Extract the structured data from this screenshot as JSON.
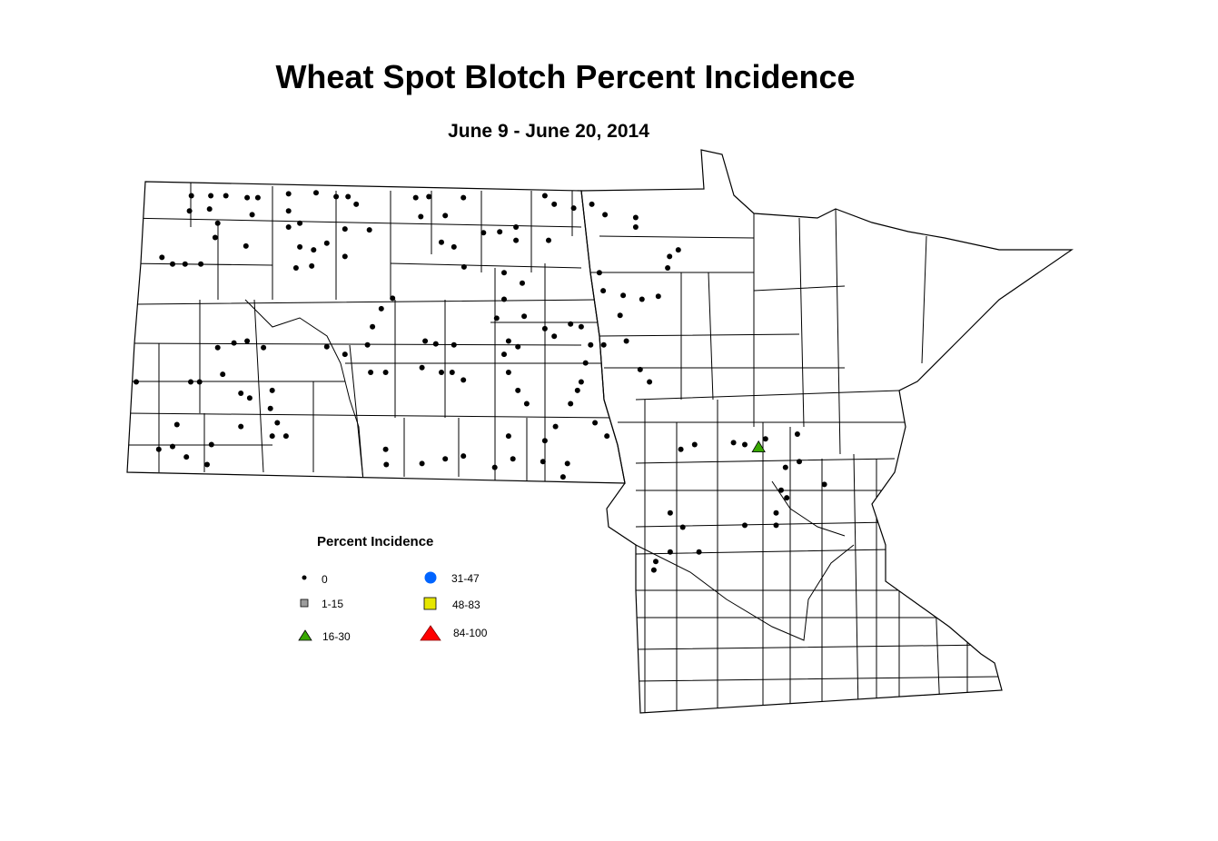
{
  "title": "Wheat Spot Blotch Percent Incidence",
  "subtitle": "June 9 - June 20, 2014",
  "legend": {
    "title": "Percent Incidence",
    "classes": [
      {
        "label": "0",
        "symbol": "small-dot",
        "color": "#000000"
      },
      {
        "label": "1-15",
        "symbol": "square",
        "color": "#9c9c9c"
      },
      {
        "label": "16-30",
        "symbol": "triangle",
        "color": "#38a800"
      },
      {
        "label": "31-47",
        "symbol": "circle",
        "color": "#0064ff"
      },
      {
        "label": "48-83",
        "symbol": "square",
        "color": "#e6e600"
      },
      {
        "label": "84-100",
        "symbol": "triangle",
        "color": "#ff0000"
      }
    ]
  },
  "map_data": {
    "region": [
      "North Dakota",
      "Minnesota"
    ],
    "boundaries": "county",
    "observations_0": [
      [
        -103.17,
        48.9
      ],
      [
        -103.2,
        48.74
      ],
      [
        -102.86,
        48.9
      ],
      [
        -102.88,
        48.76
      ],
      [
        -102.62,
        48.9
      ],
      [
        -102.28,
        48.88
      ],
      [
        -102.11,
        48.88
      ],
      [
        -102.2,
        48.7
      ],
      [
        -102.75,
        48.61
      ],
      [
        -102.3,
        48.37
      ],
      [
        -102.79,
        48.46
      ],
      [
        -103.64,
        48.25
      ],
      [
        -103.47,
        48.18
      ],
      [
        -103.27,
        48.18
      ],
      [
        -103.02,
        48.18
      ],
      [
        -101.62,
        48.92
      ],
      [
        -101.62,
        48.74
      ],
      [
        -101.62,
        48.57
      ],
      [
        -101.44,
        48.61
      ],
      [
        -101.44,
        48.36
      ],
      [
        -101.18,
        48.93
      ],
      [
        -100.86,
        48.89
      ],
      [
        -100.67,
        48.89
      ],
      [
        -100.54,
        48.81
      ],
      [
        -100.72,
        48.55
      ],
      [
        -101.01,
        48.4
      ],
      [
        -101.22,
        48.33
      ],
      [
        -101.5,
        48.14
      ],
      [
        -101.25,
        48.16
      ],
      [
        -100.72,
        48.26
      ],
      [
        -100.33,
        48.54
      ],
      [
        -99.59,
        48.88
      ],
      [
        -99.38,
        48.89
      ],
      [
        -98.83,
        48.88
      ],
      [
        -99.12,
        48.69
      ],
      [
        -99.51,
        48.68
      ],
      [
        -99.18,
        48.41
      ],
      [
        -98.98,
        48.36
      ],
      [
        -98.82,
        48.15
      ],
      [
        -98.51,
        48.51
      ],
      [
        -98.25,
        48.52
      ],
      [
        -97.99,
        48.57
      ],
      [
        -97.53,
        48.9
      ],
      [
        -97.38,
        48.81
      ],
      [
        -97.07,
        48.77
      ],
      [
        -96.78,
        48.81
      ],
      [
        -96.57,
        48.7
      ],
      [
        -96.08,
        48.67
      ],
      [
        -96.08,
        48.57
      ],
      [
        -96.66,
        48.09
      ],
      [
        -96.6,
        47.9
      ],
      [
        -96.28,
        47.85
      ],
      [
        -96.33,
        47.64
      ],
      [
        -95.98,
        47.81
      ],
      [
        -95.72,
        47.84
      ],
      [
        -95.54,
        48.26
      ],
      [
        -95.4,
        48.33
      ],
      [
        -95.57,
        48.14
      ],
      [
        -97.47,
        48.43
      ],
      [
        -97.99,
        48.43
      ],
      [
        -98.18,
        48.09
      ],
      [
        -97.89,
        47.98
      ],
      [
        -98.18,
        47.81
      ],
      [
        -98.3,
        47.61
      ],
      [
        -97.86,
        47.63
      ],
      [
        -97.53,
        47.5
      ],
      [
        -97.38,
        47.42
      ],
      [
        -97.12,
        47.55
      ],
      [
        -96.95,
        47.52
      ],
      [
        -96.8,
        47.33
      ],
      [
        -96.88,
        47.14
      ],
      [
        -96.95,
        46.94
      ],
      [
        -97.12,
        46.71
      ],
      [
        -97.01,
        46.85
      ],
      [
        -96.73,
        46.51
      ],
      [
        -96.54,
        46.37
      ],
      [
        -97.36,
        46.47
      ],
      [
        -97.53,
        46.32
      ],
      [
        -97.56,
        46.1
      ],
      [
        -97.17,
        46.08
      ],
      [
        -97.24,
        45.94
      ],
      [
        -98.11,
        46.37
      ],
      [
        -98.04,
        46.13
      ],
      [
        -98.33,
        46.04
      ],
      [
        -98.83,
        46.16
      ],
      [
        -99.12,
        46.13
      ],
      [
        -99.49,
        46.08
      ],
      [
        -100.07,
        46.23
      ],
      [
        -100.06,
        46.07
      ],
      [
        -100.28,
        47.52
      ],
      [
        -100.36,
        47.33
      ],
      [
        -100.14,
        47.71
      ],
      [
        -99.96,
        47.82
      ],
      [
        -99.44,
        47.37
      ],
      [
        -99.27,
        47.34
      ],
      [
        -98.98,
        47.33
      ],
      [
        -99.49,
        47.09
      ],
      [
        -99.18,
        47.04
      ],
      [
        -99.01,
        47.04
      ],
      [
        -98.83,
        46.96
      ],
      [
        -100.07,
        47.04
      ],
      [
        -100.31,
        47.04
      ],
      [
        -101.01,
        47.31
      ],
      [
        -100.72,
        47.23
      ],
      [
        -102.02,
        47.3
      ],
      [
        -102.28,
        47.37
      ],
      [
        -102.49,
        47.35
      ],
      [
        -102.75,
        47.3
      ],
      [
        -103.18,
        46.94
      ],
      [
        -103.04,
        46.94
      ],
      [
        -102.67,
        47.02
      ],
      [
        -102.38,
        46.82
      ],
      [
        -102.24,
        46.77
      ],
      [
        -101.88,
        46.85
      ],
      [
        -101.8,
        46.51
      ],
      [
        -101.88,
        46.37
      ],
      [
        -101.66,
        46.37
      ],
      [
        -101.91,
        46.66
      ],
      [
        -102.38,
        46.47
      ],
      [
        -103.4,
        46.49
      ],
      [
        -103.47,
        46.26
      ],
      [
        -103.69,
        46.23
      ],
      [
        -103.25,
        46.15
      ],
      [
        -102.92,
        46.07
      ],
      [
        -102.85,
        46.28
      ],
      [
        -104.05,
        46.94
      ],
      [
        -98.11,
        47.37
      ],
      [
        -98.18,
        47.23
      ],
      [
        -97.96,
        47.31
      ],
      [
        -98.11,
        47.04
      ],
      [
        -97.96,
        46.85
      ],
      [
        -97.82,
        46.71
      ],
      [
        -96.59,
        47.33
      ],
      [
        -96.23,
        47.37
      ],
      [
        -96.01,
        47.07
      ],
      [
        -95.86,
        46.94
      ],
      [
        -95.36,
        46.23
      ],
      [
        -95.14,
        46.28
      ],
      [
        -94.52,
        46.3
      ],
      [
        -94.34,
        46.28
      ],
      [
        -94.01,
        46.34
      ],
      [
        -93.5,
        46.39
      ],
      [
        -93.69,
        46.04
      ],
      [
        -93.47,
        46.1
      ],
      [
        -93.07,
        45.86
      ],
      [
        -93.76,
        45.8
      ],
      [
        -93.67,
        45.72
      ],
      [
        -93.84,
        45.56
      ],
      [
        -93.84,
        45.43
      ],
      [
        -95.53,
        45.56
      ],
      [
        -95.33,
        45.41
      ],
      [
        -94.34,
        45.43
      ],
      [
        -95.07,
        45.15
      ],
      [
        -95.53,
        45.15
      ],
      [
        -95.76,
        45.05
      ],
      [
        -95.79,
        44.96
      ]
    ],
    "observations_16_30": [
      [
        -94.12,
        46.25
      ]
    ]
  }
}
